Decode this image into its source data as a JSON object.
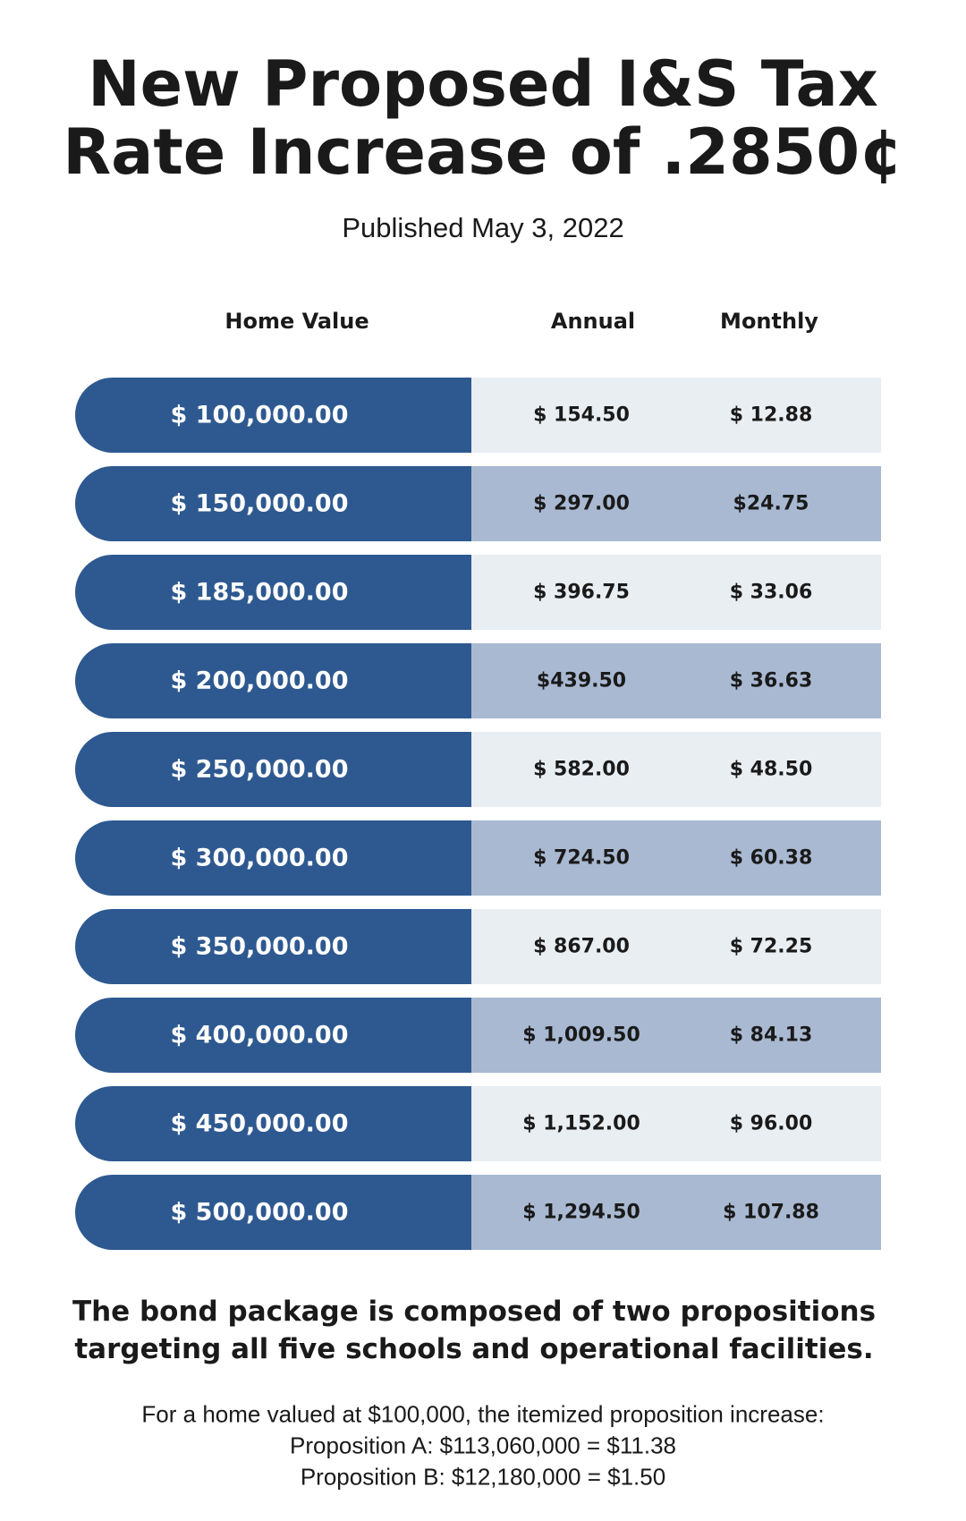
{
  "header": {
    "title_lines": [
      "New Proposed I&S Tax",
      "Rate Increase of .2850¢"
    ],
    "subtitle": "Published May 3, 2022"
  },
  "table": {
    "columns": [
      "Home Value",
      "Annual",
      "Monthly"
    ],
    "rows": [
      [
        "$ 100,000.00",
        "$ 154.50",
        "$ 12.88"
      ],
      [
        "$ 150,000.00",
        "$ 297.00",
        "$24.75"
      ],
      [
        "$ 185,000.00",
        "$ 396.75",
        "$ 33.06"
      ],
      [
        "$ 200,000.00",
        "$439.50",
        "$ 36.63"
      ],
      [
        "$ 250,000.00",
        "$ 582.00",
        "$ 48.50"
      ],
      [
        "$ 300,000.00",
        "$ 724.50",
        "$ 60.38"
      ],
      [
        "$ 350,000.00",
        "$ 867.00",
        "$ 72.25"
      ],
      [
        "$ 400,000.00",
        "$ 1,009.50",
        "$ 84.13"
      ],
      [
        "$ 450,000.00",
        "$ 1,152.00",
        "$ 96.00"
      ],
      [
        "$ 500,000.00",
        "$ 1,294.50",
        "$ 107.88"
      ]
    ]
  },
  "footer": {
    "summary_lines": [
      "The bond package is composed of two propositions",
      "targeting all five schools and operational facilities."
    ],
    "note_lines": [
      "For a home valued at $100,000, the itemized proposition increase:",
      "Proposition A: $113,060,000 = $11.38",
      "Proposition B: $12,180,000 = $1.50"
    ]
  }
}
